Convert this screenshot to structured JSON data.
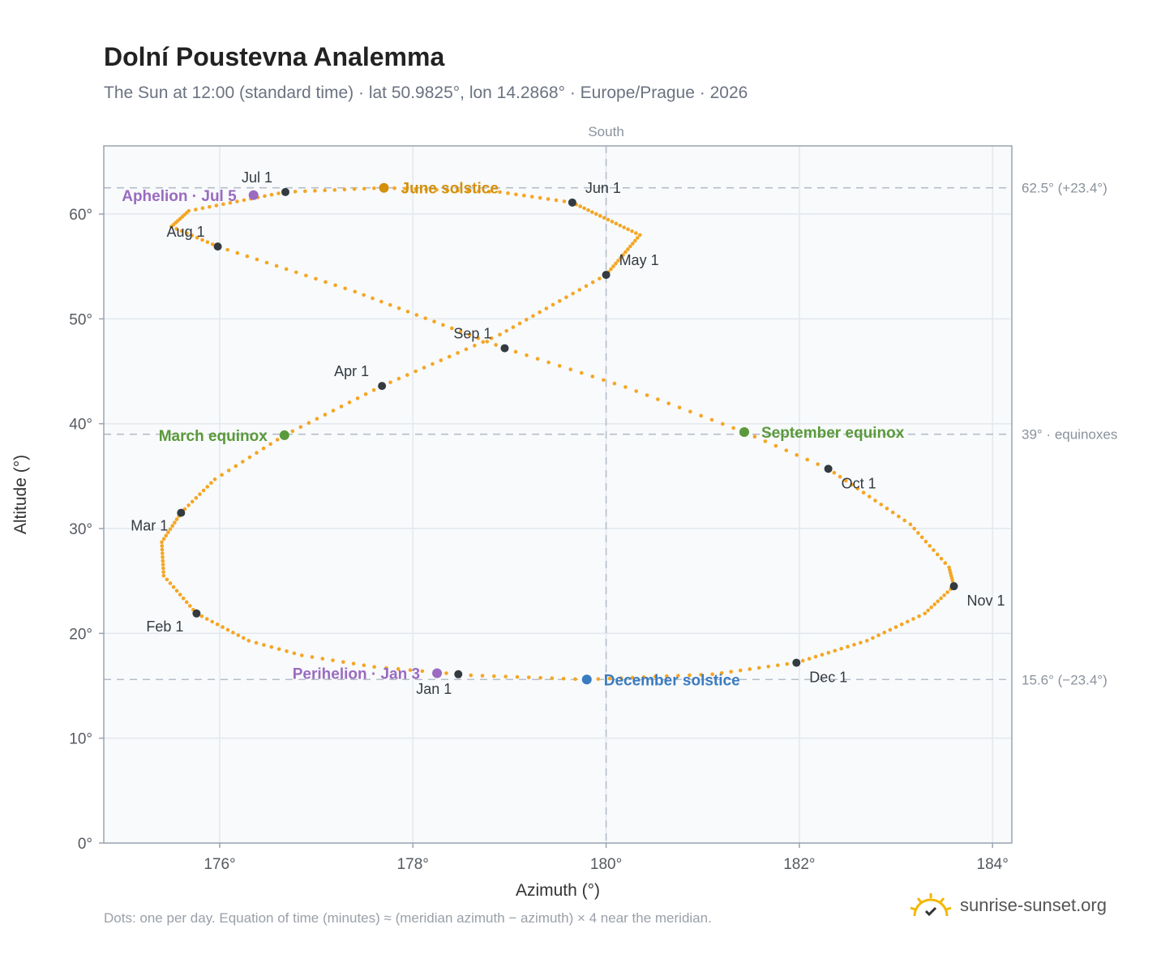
{
  "header": {
    "title": "Dolní Poustevna Analemma",
    "subtitle": "The Sun at 12:00 (standard time) · lat 50.9825°, lon 14.2868° · Europe/Prague · 2026"
  },
  "footer": {
    "note": "Dots: one per day. Equation of time (minutes) ≈ (meridian azimuth − azimuth) × 4 near the meridian.",
    "brand": "sunrise-sunset.org",
    "brand_icon": "sun-check-icon"
  },
  "colors": {
    "curve": "#f5a623",
    "month_marker": "#333a40",
    "solstice_june": "#d4900a",
    "solstice_december": "#3b7bbf",
    "equinox": "#5a9a3a",
    "apsis": "#9a6bc0",
    "reference_line": "#b6bec8",
    "plot_bg": "#f8fafc",
    "grid": "#e3e8ee",
    "frame": "#9aa4b0"
  },
  "chart_data": {
    "type": "scatter",
    "xlabel": "Azimuth (°)",
    "ylabel": "Altitude (°)",
    "xlim": [
      174.8,
      184.2
    ],
    "ylim": [
      0,
      66.5
    ],
    "xticks": [
      {
        "value": 176,
        "label": "176°"
      },
      {
        "value": 178,
        "label": "178°"
      },
      {
        "value": 180,
        "label": "180°"
      },
      {
        "value": 182,
        "label": "182°"
      },
      {
        "value": 184,
        "label": "184°"
      }
    ],
    "yticks": [
      {
        "value": 0,
        "label": "0°"
      },
      {
        "value": 10,
        "label": "10°"
      },
      {
        "value": 20,
        "label": "20°"
      },
      {
        "value": 30,
        "label": "30°"
      },
      {
        "value": 40,
        "label": "40°"
      },
      {
        "value": 50,
        "label": "50°"
      },
      {
        "value": 60,
        "label": "60°"
      }
    ],
    "grid": true,
    "meridian": {
      "azimuth": 180,
      "label": "South"
    },
    "reference_lines": [
      {
        "altitude": 62.5,
        "label": "62.5° (+23.4°)"
      },
      {
        "altitude": 39,
        "label": "39° · equinoxes"
      },
      {
        "altitude": 15.6,
        "label": "15.6° (−23.4°)"
      }
    ],
    "curve_anchors": [
      {
        "date": "2026-01-01",
        "az": 178.47,
        "alt": 16.1
      },
      {
        "date": "2026-01-08",
        "az": 177.6,
        "alt": 16.8
      },
      {
        "date": "2026-01-15",
        "az": 176.85,
        "alt": 17.9
      },
      {
        "date": "2026-01-22",
        "az": 176.3,
        "alt": 19.3
      },
      {
        "date": "2026-02-01",
        "az": 175.76,
        "alt": 21.9
      },
      {
        "date": "2026-02-11",
        "az": 175.42,
        "alt": 25.5
      },
      {
        "date": "2026-02-20",
        "az": 175.4,
        "alt": 28.7
      },
      {
        "date": "2026-03-01",
        "az": 175.6,
        "alt": 31.5
      },
      {
        "date": "2026-03-10",
        "az": 175.95,
        "alt": 34.7
      },
      {
        "date": "2026-03-20",
        "az": 176.67,
        "alt": 38.9
      },
      {
        "date": "2026-04-01",
        "az": 177.68,
        "alt": 43.6
      },
      {
        "date": "2026-04-15",
        "az": 178.9,
        "alt": 48.5
      },
      {
        "date": "2026-05-01",
        "az": 180.0,
        "alt": 54.2
      },
      {
        "date": "2026-05-15",
        "az": 180.35,
        "alt": 58.0
      },
      {
        "date": "2026-06-01",
        "az": 179.65,
        "alt": 61.1
      },
      {
        "date": "2026-06-10",
        "az": 178.9,
        "alt": 62.1
      },
      {
        "date": "2026-06-21",
        "az": 177.7,
        "alt": 62.5
      },
      {
        "date": "2026-07-01",
        "az": 176.68,
        "alt": 62.1
      },
      {
        "date": "2026-07-15",
        "az": 175.68,
        "alt": 60.3
      },
      {
        "date": "2026-07-23",
        "az": 175.5,
        "alt": 58.8
      },
      {
        "date": "2026-08-01",
        "az": 175.98,
        "alt": 56.9
      },
      {
        "date": "2026-08-15",
        "az": 177.4,
        "alt": 52.6
      },
      {
        "date": "2026-09-01",
        "az": 178.95,
        "alt": 47.2
      },
      {
        "date": "2026-09-12",
        "az": 180.2,
        "alt": 43.5
      },
      {
        "date": "2026-09-23",
        "az": 181.43,
        "alt": 39.2
      },
      {
        "date": "2026-10-01",
        "az": 182.3,
        "alt": 35.7
      },
      {
        "date": "2026-10-15",
        "az": 183.15,
        "alt": 30.4
      },
      {
        "date": "2026-10-25",
        "az": 183.55,
        "alt": 26.3
      },
      {
        "date": "2026-11-01",
        "az": 183.6,
        "alt": 24.5
      },
      {
        "date": "2026-11-10",
        "az": 183.3,
        "alt": 21.9
      },
      {
        "date": "2026-11-20",
        "az": 182.7,
        "alt": 19.3
      },
      {
        "date": "2026-12-01",
        "az": 181.97,
        "alt": 17.2
      },
      {
        "date": "2026-12-10",
        "az": 181.1,
        "alt": 16.1
      },
      {
        "date": "2026-12-21",
        "az": 179.8,
        "alt": 15.6
      },
      {
        "date": "2026-12-31",
        "az": 178.6,
        "alt": 16.0
      }
    ],
    "month_markers": [
      {
        "label": "Jan 1",
        "az": 178.47,
        "alt": 16.1,
        "pos": "below"
      },
      {
        "label": "Feb 1",
        "az": 175.76,
        "alt": 21.9,
        "pos": "below-left"
      },
      {
        "label": "Mar 1",
        "az": 175.6,
        "alt": 31.5,
        "pos": "below-left"
      },
      {
        "label": "Apr 1",
        "az": 177.68,
        "alt": 43.6,
        "pos": "above-left"
      },
      {
        "label": "May 1",
        "az": 180.0,
        "alt": 54.2,
        "pos": "above-right"
      },
      {
        "label": "Jun 1",
        "az": 179.65,
        "alt": 61.1,
        "pos": "above-right"
      },
      {
        "label": "Jul 1",
        "az": 176.68,
        "alt": 62.1,
        "pos": "above-left"
      },
      {
        "label": "Aug 1",
        "az": 175.98,
        "alt": 56.9,
        "pos": "above-left"
      },
      {
        "label": "Sep 1",
        "az": 178.95,
        "alt": 47.2,
        "pos": "above-left"
      },
      {
        "label": "Oct 1",
        "az": 182.3,
        "alt": 35.7,
        "pos": "below-right"
      },
      {
        "label": "Nov 1",
        "az": 183.6,
        "alt": 24.5,
        "pos": "below-right"
      },
      {
        "label": "Dec 1",
        "az": 181.97,
        "alt": 17.2,
        "pos": "below-right"
      }
    ],
    "events": [
      {
        "label": "June solstice",
        "az": 177.7,
        "alt": 62.5,
        "color": "#d4900a",
        "side": "right"
      },
      {
        "label": "December solstice",
        "az": 179.8,
        "alt": 15.6,
        "color": "#3b7bbf",
        "side": "right"
      },
      {
        "label": "March equinox",
        "az": 176.67,
        "alt": 38.9,
        "color": "#5a9a3a",
        "side": "left"
      },
      {
        "label": "September equinox",
        "az": 181.43,
        "alt": 39.2,
        "color": "#5a9a3a",
        "side": "right"
      },
      {
        "label": "Aphelion · Jul 5",
        "az": 176.35,
        "alt": 61.8,
        "color": "#9a6bc0",
        "side": "left"
      },
      {
        "label": "Perihelion · Jan 3",
        "az": 178.25,
        "alt": 16.2,
        "color": "#9a6bc0",
        "side": "left"
      }
    ]
  }
}
